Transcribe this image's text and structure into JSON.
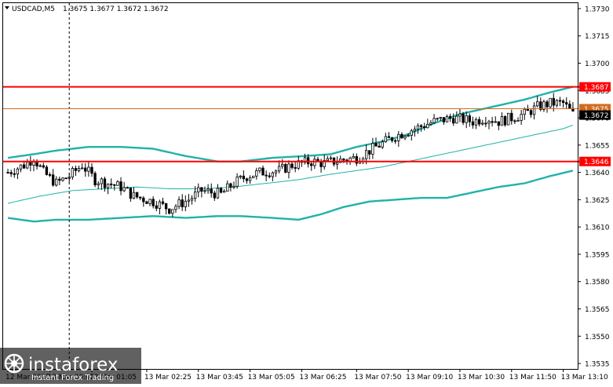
{
  "header": {
    "symbol_label": "USDCAD,M5",
    "ohlc_label": "1.3675 1.3677 1.3672 1.3672"
  },
  "watermark": {
    "brand": "instaforex",
    "tagline": "Instant Forex Trading"
  },
  "colors": {
    "background": "#ffffff",
    "candle": "#000000",
    "bollinger_band": "#20b2aa",
    "ma": "#20b2aa",
    "level_line": "#ff0000",
    "bid_line": "#d2691e",
    "frame": "#000000"
  },
  "chart_data": {
    "type": "candlestick",
    "symbol": "USDCAD",
    "timeframe": "M5",
    "y_range": [
      1.3532,
      1.3733
    ],
    "y_ticks": [
      {
        "value": 1.373,
        "label": "1.3730"
      },
      {
        "value": 1.3715,
        "label": "1.3715"
      },
      {
        "value": 1.37,
        "label": "1.3700"
      },
      {
        "value": 1.3685,
        "label": "1.3685"
      },
      {
        "value": 1.367,
        "label": "1.3670"
      },
      {
        "value": 1.3655,
        "label": "1.3655"
      },
      {
        "value": 1.364,
        "label": "1.3640"
      },
      {
        "value": 1.3625,
        "label": "1.3625"
      },
      {
        "value": 1.361,
        "label": "1.3610"
      },
      {
        "value": 1.3595,
        "label": "1.3595"
      },
      {
        "value": 1.358,
        "label": "1.3580"
      },
      {
        "value": 1.3565,
        "label": "1.3565"
      },
      {
        "value": 1.355,
        "label": "1.3550"
      },
      {
        "value": 1.3535,
        "label": "1.3535"
      }
    ],
    "x_ticks": [
      "12 Mar 2025",
      "13 Mar 00:05",
      "13 Mar 01:05",
      "13 Mar 02:25",
      "13 Mar 03:45",
      "13 Mar 05:05",
      "13 Mar 06:25",
      "13 Mar 07:50",
      "13 Mar 09:10",
      "13 Mar 10:30",
      "13 Mar 11:50",
      "13 Mar 13:10"
    ],
    "x_tick_index": [
      0,
      13,
      26,
      43,
      59,
      75,
      91,
      108,
      124,
      140,
      156,
      172
    ],
    "horizontal_levels": [
      {
        "value": 1.3687,
        "label": "1.3687",
        "kind": "resistance"
      },
      {
        "value": 1.3646,
        "label": "1.3646",
        "kind": "support"
      }
    ],
    "bid_level": {
      "value": 1.3675,
      "label": "1.3675"
    },
    "current_price": {
      "value": 1.3672,
      "label": "1.3672"
    },
    "day_separator_index": 19,
    "candle_count": 176,
    "anchors": {
      "close": [
        [
          0,
          1.364
        ],
        [
          5,
          1.3644
        ],
        [
          8,
          1.3648
        ],
        [
          11,
          1.364
        ],
        [
          15,
          1.3634
        ],
        [
          19,
          1.3638
        ],
        [
          23,
          1.3644
        ],
        [
          27,
          1.3636
        ],
        [
          31,
          1.3634
        ],
        [
          35,
          1.3632
        ],
        [
          39,
          1.3627
        ],
        [
          45,
          1.3624
        ],
        [
          50,
          1.362
        ],
        [
          56,
          1.3625
        ],
        [
          60,
          1.363
        ],
        [
          66,
          1.3628
        ],
        [
          70,
          1.3634
        ],
        [
          74,
          1.3638
        ],
        [
          78,
          1.364
        ],
        [
          84,
          1.3641
        ],
        [
          88,
          1.3644
        ],
        [
          94,
          1.3646
        ],
        [
          98,
          1.3645
        ],
        [
          104,
          1.3647
        ],
        [
          108,
          1.3648
        ],
        [
          112,
          1.3652
        ],
        [
          116,
          1.3656
        ],
        [
          120,
          1.366
        ],
        [
          126,
          1.3664
        ],
        [
          132,
          1.3668
        ],
        [
          138,
          1.367
        ],
        [
          144,
          1.3668
        ],
        [
          148,
          1.367
        ],
        [
          152,
          1.3668
        ],
        [
          156,
          1.367
        ],
        [
          160,
          1.3672
        ],
        [
          164,
          1.3676
        ],
        [
          168,
          1.3678
        ],
        [
          172,
          1.3678
        ],
        [
          175,
          1.3672
        ]
      ],
      "bb_upper": [
        [
          0,
          1.3648
        ],
        [
          8,
          1.365
        ],
        [
          15,
          1.3652
        ],
        [
          25,
          1.3654
        ],
        [
          35,
          1.3654
        ],
        [
          45,
          1.3653
        ],
        [
          55,
          1.3649
        ],
        [
          65,
          1.3646
        ],
        [
          72,
          1.3646
        ],
        [
          82,
          1.3648
        ],
        [
          92,
          1.3649
        ],
        [
          100,
          1.365
        ],
        [
          108,
          1.3654
        ],
        [
          116,
          1.3657
        ],
        [
          124,
          1.3661
        ],
        [
          132,
          1.3667
        ],
        [
          140,
          1.3672
        ],
        [
          150,
          1.3676
        ],
        [
          160,
          1.368
        ],
        [
          168,
          1.3684
        ],
        [
          175,
          1.3687
        ]
      ],
      "bb_lower": [
        [
          0,
          1.3615
        ],
        [
          8,
          1.3613
        ],
        [
          15,
          1.3614
        ],
        [
          25,
          1.3614
        ],
        [
          35,
          1.3615
        ],
        [
          45,
          1.3616
        ],
        [
          55,
          1.3615
        ],
        [
          65,
          1.3616
        ],
        [
          72,
          1.3616
        ],
        [
          82,
          1.3615
        ],
        [
          90,
          1.3614
        ],
        [
          97,
          1.3617
        ],
        [
          104,
          1.3621
        ],
        [
          112,
          1.3624
        ],
        [
          120,
          1.3625
        ],
        [
          128,
          1.3626
        ],
        [
          136,
          1.3626
        ],
        [
          144,
          1.3629
        ],
        [
          152,
          1.3632
        ],
        [
          160,
          1.3634
        ],
        [
          168,
          1.3638
        ],
        [
          175,
          1.3641
        ]
      ],
      "ma": [
        [
          0,
          1.3623
        ],
        [
          10,
          1.3627
        ],
        [
          20,
          1.363
        ],
        [
          30,
          1.3631
        ],
        [
          40,
          1.3632
        ],
        [
          50,
          1.3631
        ],
        [
          60,
          1.3631
        ],
        [
          70,
          1.3632
        ],
        [
          80,
          1.3634
        ],
        [
          90,
          1.3636
        ],
        [
          100,
          1.3639
        ],
        [
          108,
          1.3641
        ],
        [
          116,
          1.3643
        ],
        [
          124,
          1.3646
        ],
        [
          132,
          1.3649
        ],
        [
          140,
          1.3652
        ],
        [
          148,
          1.3655
        ],
        [
          156,
          1.3658
        ],
        [
          164,
          1.3661
        ],
        [
          172,
          1.3664
        ],
        [
          175,
          1.3666
        ]
      ]
    }
  }
}
